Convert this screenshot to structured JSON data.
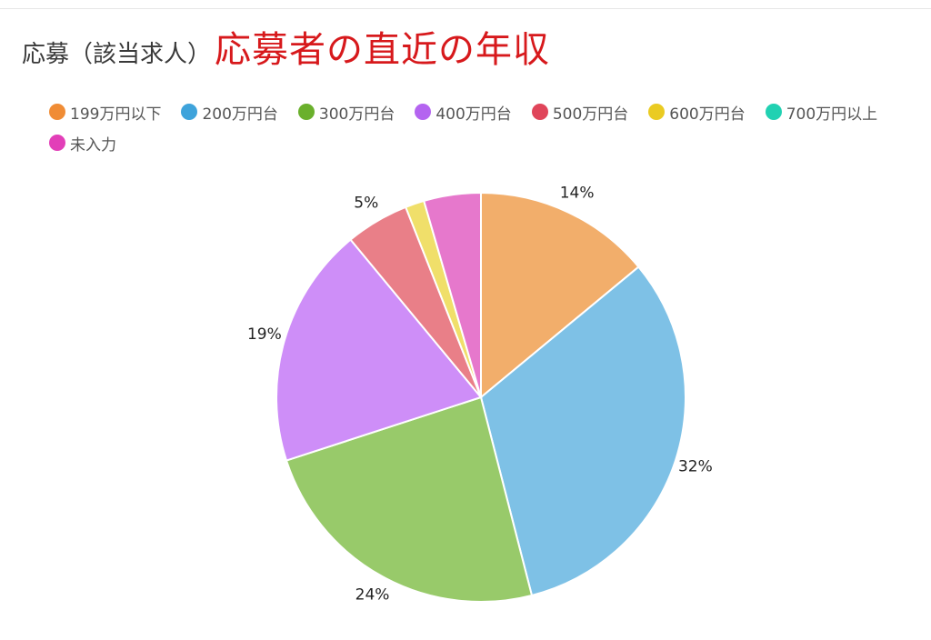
{
  "title": {
    "main": "応募（該当求人）",
    "highlight": "応募者の直近の年収"
  },
  "chart_data": {
    "type": "pie",
    "start_angle_deg": 0,
    "direction": "clockwise",
    "slices": [
      {
        "label": "199万円以下",
        "value": 14,
        "percent_label": "14%",
        "legend_color": "#f08c35",
        "color": "#f2ae6b"
      },
      {
        "label": "200万円台",
        "value": 32,
        "percent_label": "32%",
        "legend_color": "#3ea3db",
        "color": "#7ec1e6"
      },
      {
        "label": "300万円台",
        "value": 24,
        "percent_label": "24%",
        "legend_color": "#6ab02c",
        "color": "#98ca6a"
      },
      {
        "label": "400万円台",
        "value": 19,
        "percent_label": "19%",
        "legend_color": "#b464f0",
        "color": "#ce8ef8"
      },
      {
        "label": "500万円台",
        "value": 5,
        "percent_label": "5%",
        "legend_color": "#e0455a",
        "color": "#e97f88"
      },
      {
        "label": "600万円台",
        "value": 1.5,
        "percent_label": "",
        "legend_color": "#eacb22",
        "color": "#f0df6a"
      },
      {
        "label": "700万円以上",
        "value": 0,
        "percent_label": "",
        "legend_color": "#21d1b2",
        "color": "#6fe0cc"
      },
      {
        "label": "未入力",
        "value": 4.5,
        "percent_label": "",
        "legend_color": "#e23fb8",
        "color": "#e678cc"
      }
    ]
  }
}
